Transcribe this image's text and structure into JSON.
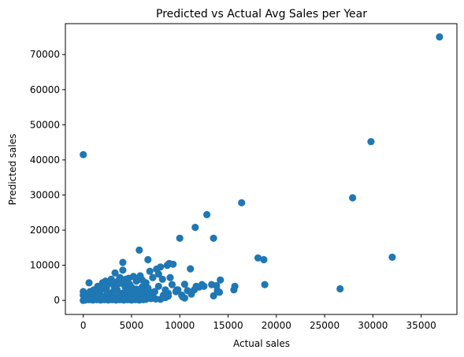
{
  "chart_data": {
    "type": "scatter",
    "title": "Predicted vs Actual Avg Sales per Year",
    "xlabel": "Actual sales",
    "ylabel": "Predicted sales",
    "xlim": [
      -1850,
      38700
    ],
    "ylim": [
      -4000,
      78800
    ],
    "xticks": [
      0,
      5000,
      10000,
      15000,
      20000,
      25000,
      30000,
      35000
    ],
    "xtick_labels": [
      "0",
      "5000",
      "10000",
      "15000",
      "20000",
      "25000",
      "30000",
      "35000"
    ],
    "yticks": [
      0,
      10000,
      20000,
      30000,
      40000,
      50000,
      60000,
      70000
    ],
    "ytick_labels": [
      "0",
      "10000",
      "20000",
      "30000",
      "40000",
      "50000",
      "60000",
      "70000"
    ],
    "grid": false,
    "legend": "none",
    "colors": {
      "point": "#1f77b4"
    },
    "series": [
      {
        "x": [
          36900,
          29800,
          0,
          27900,
          32000,
          26600,
          16400,
          12800,
          11600,
          13500,
          10000,
          18100,
          18700,
          18800,
          14200,
          15600,
          15700,
          13300,
          13500,
          11100,
          5800,
          6700,
          4100,
          11200,
          10500,
          12300,
          8900,
          6900,
          8000,
          8700,
          9300,
          7600,
          9000,
          8200,
          7800,
          5900,
          4700,
          6100,
          5200,
          3300,
          3800,
          2900,
          2300,
          2000,
          4800,
          4400,
          4100,
          3200,
          3600,
          2600,
          5500,
          6500,
          7200,
          7800,
          9200,
          8500,
          10500,
          11700,
          9700,
          10800,
          10200,
          8800,
          8500,
          600,
          1500,
          2400,
          3400,
          4300,
          5100,
          6300,
          7400,
          6200,
          6800,
          9800,
          10300,
          14100,
          13900,
          12000,
          1100,
          800,
          400,
          1300,
          1800,
          2200,
          2700,
          3100,
          3500,
          3900,
          4400,
          4900,
          5300,
          5700,
          6000,
          6600,
          7000,
          700,
          1600,
          2500,
          3000,
          3700,
          4200,
          4600,
          5400,
          5800,
          2100,
          2800,
          1200,
          200,
          0,
          0,
          100,
          300,
          500,
          900,
          1400,
          1700,
          1900,
          2300,
          2600,
          3300,
          3800,
          4500,
          5000,
          5600,
          6400,
          1000,
          1500,
          2000,
          2500,
          3000,
          3500,
          4000,
          4500,
          5000,
          5500,
          6000,
          6500,
          7000,
          7500,
          8000,
          0,
          200,
          600,
          1000,
          1400,
          1800,
          2200,
          2600,
          3000,
          3400,
          3800,
          4200,
          4600,
          5000,
          5400,
          5800,
          6200,
          8300,
          8800,
          9600,
          11500,
          12500,
          13800,
          700,
          1300,
          1900,
          2500,
          3100,
          3700,
          4300,
          4900,
          5500,
          6100,
          6700,
          7300
        ],
        "y": [
          75000,
          45200,
          41500,
          29200,
          12300,
          3300,
          27800,
          24400,
          20800,
          17700,
          17700,
          12100,
          11600,
          4500,
          5800,
          3000,
          4000,
          4500,
          1300,
          9000,
          14300,
          11600,
          10800,
          1800,
          700,
          4500,
          10500,
          8300,
          9500,
          10000,
          10300,
          8900,
          6500,
          6000,
          7500,
          7000,
          6300,
          5800,
          6800,
          7800,
          6500,
          6000,
          5500,
          5000,
          4600,
          6000,
          8600,
          4000,
          5500,
          4800,
          5500,
          5000,
          6500,
          4000,
          4500,
          3000,
          4600,
          4000,
          3000,
          2800,
          1500,
          1200,
          800,
          5000,
          4000,
          3500,
          3000,
          4200,
          3500,
          3000,
          2500,
          2000,
          2600,
          3000,
          1000,
          2300,
          2800,
          3800,
          3000,
          2500,
          1500,
          2200,
          2800,
          3500,
          2000,
          2500,
          3000,
          2000,
          3000,
          2500,
          2000,
          2500,
          3000,
          1500,
          1000,
          1200,
          1500,
          2000,
          1800,
          1200,
          1800,
          2000,
          1200,
          1500,
          1000,
          1000,
          1800,
          500,
          2500,
          1500,
          1000,
          500,
          1200,
          800,
          1000,
          1500,
          800,
          1200,
          600,
          800,
          1200,
          700,
          1000,
          600,
          700,
          400,
          300,
          500,
          400,
          600,
          500,
          300,
          400,
          500,
          300,
          400,
          300,
          500,
          400,
          300,
          0,
          100,
          200,
          100,
          200,
          100,
          200,
          100,
          200,
          100,
          200,
          100,
          200,
          100,
          200,
          100,
          200,
          1500,
          2000,
          2500,
          3000,
          4000,
          4200,
          2500,
          2800,
          3500,
          4500,
          5200,
          4800,
          5600,
          4000,
          3200,
          3800,
          3500,
          2200
        ]
      }
    ]
  }
}
